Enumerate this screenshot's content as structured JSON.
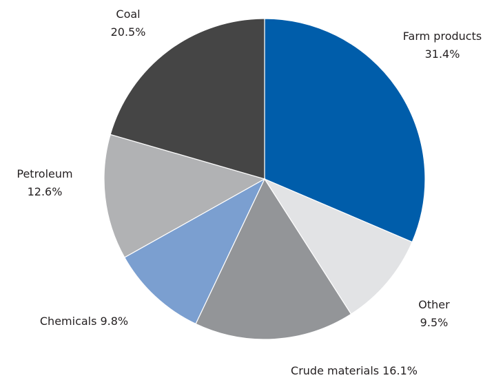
{
  "chart_data": {
    "type": "pie",
    "categories": [
      "Farm products",
      "Other",
      "Crude materials",
      "Chemicals",
      "Petroleum",
      "Coal"
    ],
    "values": [
      31.4,
      9.5,
      16.1,
      9.8,
      12.6,
      20.5
    ],
    "value_labels": [
      "31.4%",
      "9.5%",
      "16.1%",
      "9.8%",
      "12.6%",
      "20.5%"
    ],
    "colors": [
      "#005daa",
      "#e2e3e5",
      "#939598",
      "#7b9fd0",
      "#b1b2b4",
      "#454545"
    ]
  }
}
